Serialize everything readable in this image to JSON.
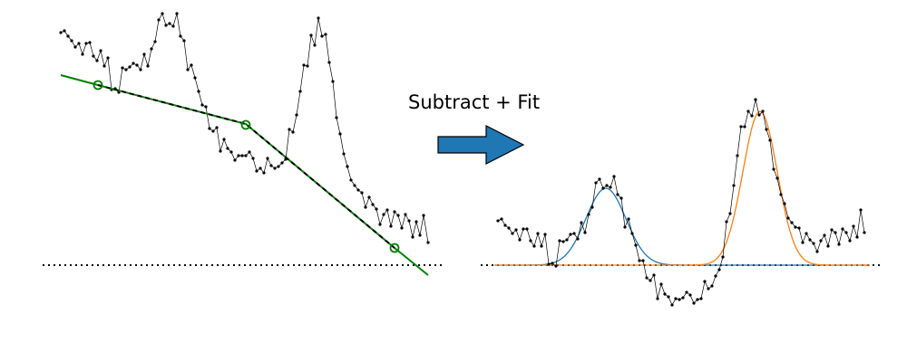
{
  "caption": "Subtract + Fit",
  "colors": {
    "raw_trace": "#000000",
    "baseline_fit": "#008000",
    "baseline_anchor": "#008000",
    "arrow_fill": "#1f77b4",
    "gaussian_1": "#1f77b4",
    "gaussian_2": "#ff7f0e",
    "zero_line": "#000000"
  },
  "icons": {
    "arrow": "right-arrow-icon"
  },
  "left_panel": {
    "description_series": [
      {
        "name": "",
        "role": "raw-signal"
      },
      {
        "name": "",
        "role": "piecewise-linear-baseline"
      }
    ]
  },
  "right_panel": {
    "description_series": [
      {
        "name": "",
        "role": "baseline-subtracted-signal"
      },
      {
        "name": "",
        "role": "gaussian-fit-1"
      },
      {
        "name": "",
        "role": "gaussian-fit-2"
      }
    ]
  }
}
